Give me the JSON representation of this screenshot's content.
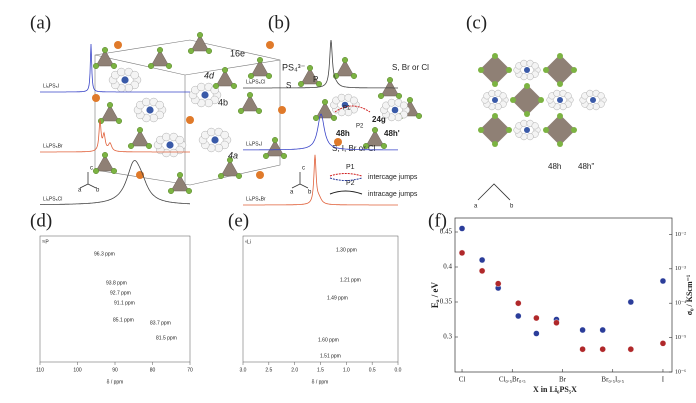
{
  "panel_labels": [
    "(a)",
    "(b)",
    "(c)",
    "(d)",
    "(e)",
    "(f)"
  ],
  "structure_a": {
    "sites": [
      "16e",
      "4d",
      "4b",
      "4a"
    ],
    "axes": [
      "a",
      "b",
      "c"
    ]
  },
  "structure_b": {
    "ion": "PS₄³⁻",
    "atoms": [
      "S",
      "P"
    ],
    "sites": [
      "S, Br or Cl",
      "24g",
      "48h",
      "48h'",
      "S, I, Br or Cl"
    ],
    "paths": [
      "P1",
      "P2"
    ],
    "legend": [
      "intercage jumps",
      "intracage jumps"
    ],
    "axes": [
      "a",
      "b",
      "c"
    ]
  },
  "structure_c": {
    "sites": [
      "48h",
      "48h''"
    ],
    "axes": [
      "a",
      "b"
    ]
  },
  "nmr_d": {
    "nucleus": "³¹P",
    "xlabel": "δ / ppm",
    "xlim": [
      110,
      70
    ],
    "xticks": [
      110,
      100,
      90,
      80,
      70
    ],
    "spectra": [
      {
        "name": "Li₆PS₅I",
        "peaks": [
          "96.3 ppm"
        ]
      },
      {
        "name": "Li₆PS₅Br",
        "peaks": [
          "93.8 ppm",
          "92.7 ppm",
          "91.1 ppm"
        ]
      },
      {
        "name": "Li₆PS₅Cl",
        "peaks": [
          "85.1 ppm",
          "83.7 ppm",
          "81.5 ppm"
        ]
      }
    ]
  },
  "nmr_e": {
    "nucleus": "⁶Li",
    "xlabel": "δ / ppm",
    "xlim": [
      3,
      0
    ],
    "xticks": [
      {
        "value": 3,
        "label": "3.0"
      },
      2.5,
      {
        "value": 2,
        "label": "2.0"
      },
      1.5,
      {
        "value": 1,
        "label": "1.0"
      },
      0.5,
      {
        "value": 0,
        "label": "0.0"
      }
    ],
    "spectra": [
      {
        "name": "Li₆PS₅Cl",
        "peaks": [
          "1.30 ppm",
          "1.21 ppm"
        ]
      },
      {
        "name": "Li₆PS₅I",
        "peaks": [
          "1.49 ppm"
        ]
      },
      {
        "name": "Li₆PS₅Br",
        "peaks": [
          "1.60 ppm",
          "1.51 ppm"
        ]
      }
    ]
  },
  "chart_data": {
    "type": "scatter",
    "xlabel": "X in Li₆PS₅X",
    "ylabel": "Eₐ / eV",
    "y2label": "σ₀ / KScm⁻¹",
    "xlim": [
      -0.035,
      1.045
    ],
    "xticks": [
      {
        "value": 0,
        "label": "Cl"
      },
      {
        "value": 0.25,
        "label": "Cl₀.₅Br₀.₅"
      },
      {
        "value": 0.5,
        "label": "Br"
      },
      {
        "value": 0.75,
        "label": "Br₀.₅I₀.₅"
      },
      {
        "value": 1,
        "label": "I"
      }
    ],
    "ylim": [
      0.25,
      0.47
    ],
    "yticks": [
      0.3,
      0.35,
      0.4,
      0.45
    ],
    "y2lim": [
      1e-06,
      0.03
    ],
    "y2log": true,
    "y2ticks": [
      {
        "value": 1e-06,
        "label": "10⁻⁶"
      },
      {
        "value": 1e-05,
        "label": "10⁻⁵"
      },
      {
        "value": 0.0001,
        "label": "10⁻⁴"
      },
      {
        "value": 0.001,
        "label": "10⁻³"
      },
      {
        "value": 0.01,
        "label": "10⁻²"
      }
    ],
    "x": [
      0,
      0.1,
      0.18,
      0.28,
      0.37,
      0.47,
      0.6,
      0.7,
      0.84,
      1
    ],
    "series": [
      {
        "color": "#2b3d9a",
        "values": [
          0.455,
          0.41,
          0.37,
          0.33,
          0.305,
          0.325,
          0.31,
          0.31,
          0.35,
          0.38
        ]
      },
      {
        "color": "#b0282a",
        "axis": "y2",
        "values": [
          0.0029,
          0.00087,
          0.00037,
          0.0001,
          3.7e-05,
          2.7e-05,
          4.6e-06,
          4.6e-06,
          4.6e-06,
          6.8e-06
        ]
      }
    ]
  }
}
